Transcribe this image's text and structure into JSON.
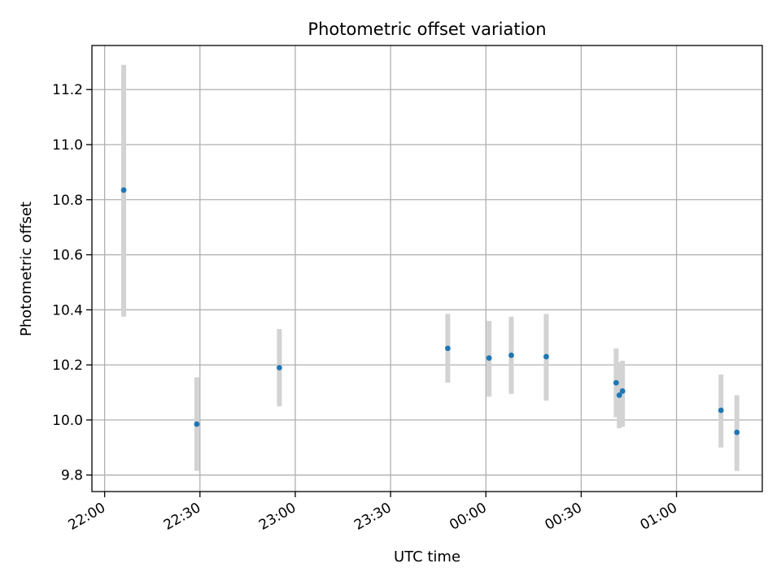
{
  "chart_data": {
    "type": "scatter",
    "title": "Photometric offset variation",
    "xlabel": "UTC time",
    "ylabel": "Photometric offset",
    "x_axis": {
      "type": "time",
      "range": [
        "21:56",
        "01:27"
      ],
      "ticks": [
        "22:00",
        "22:30",
        "23:00",
        "23:30",
        "00:00",
        "00:30",
        "01:00"
      ]
    },
    "y_axis": {
      "range": [
        9.74,
        11.36
      ],
      "ticks": [
        9.8,
        10.0,
        10.2,
        10.4,
        10.6,
        10.8,
        11.0,
        11.2
      ],
      "tick_labels": [
        "9.8",
        "10.0",
        "10.2",
        "10.4",
        "10.6",
        "10.8",
        "11.0",
        "11.2"
      ]
    },
    "grid": true,
    "colors": {
      "point": "#1f77b4",
      "errorbar": "#d3d3d3",
      "grid": "#b0b0b0"
    },
    "points": [
      {
        "time": "22:06",
        "y": 10.835,
        "low": 10.375,
        "high": 11.29
      },
      {
        "time": "22:29",
        "y": 9.985,
        "low": 9.815,
        "high": 10.155
      },
      {
        "time": "22:55",
        "y": 10.19,
        "low": 10.05,
        "high": 10.33
      },
      {
        "time": "23:48",
        "y": 10.26,
        "low": 10.135,
        "high": 10.385
      },
      {
        "time": "00:01",
        "y": 10.225,
        "low": 10.085,
        "high": 10.36
      },
      {
        "time": "00:08",
        "y": 10.235,
        "low": 10.095,
        "high": 10.375
      },
      {
        "time": "00:19",
        "y": 10.23,
        "low": 10.07,
        "high": 10.385
      },
      {
        "time": "00:41",
        "y": 10.135,
        "low": 10.01,
        "high": 10.26
      },
      {
        "time": "00:42",
        "y": 10.09,
        "low": 9.97,
        "high": 10.21
      },
      {
        "time": "00:43",
        "y": 10.105,
        "low": 9.975,
        "high": 10.215
      },
      {
        "time": "01:14",
        "y": 10.035,
        "low": 9.9,
        "high": 10.165
      },
      {
        "time": "01:19",
        "y": 9.955,
        "low": 9.815,
        "high": 10.09
      }
    ]
  }
}
